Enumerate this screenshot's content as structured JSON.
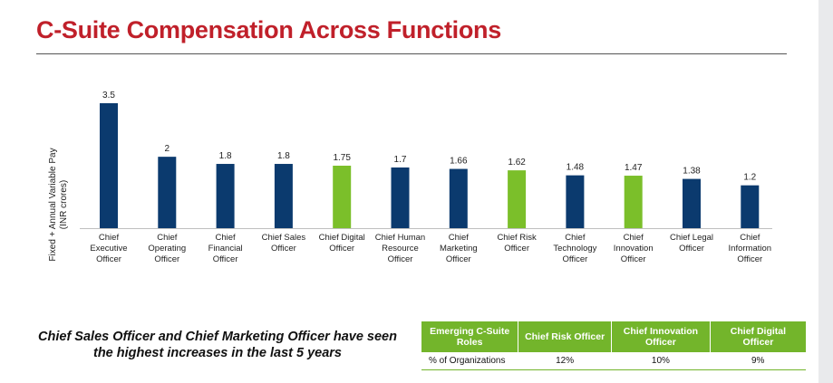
{
  "page": {
    "title": "C-Suite Compensation Across Functions",
    "caption": "Chief Sales Officer and Chief Marketing Officer have seen the highest increases in the last 5 years"
  },
  "colors": {
    "title": "#c0202a",
    "bar_primary": "#0b3a6e",
    "bar_emerging": "#7bbf2a",
    "table_header": "#73b52b"
  },
  "chart_data": {
    "type": "bar",
    "ylabel": "Fixed + Annual Variable Pay\n(INR crores)",
    "categories": [
      "Chief\nExecutive\nOfficer",
      "Chief\nOperating\nOfficer",
      "Chief\nFinancial\nOfficer",
      "Chief Sales\nOfficer",
      "Chief Digital\nOfficer",
      "Chief Human\nResource\nOfficer",
      "Chief\nMarketing\nOfficer",
      "Chief Risk\nOfficer",
      "Chief\nTechnology\nOfficer",
      "Chief\nInnovation\nOfficer",
      "Chief Legal\nOfficer",
      "Chief\nInformation\nOfficer"
    ],
    "values": [
      3.5,
      2,
      1.8,
      1.8,
      1.75,
      1.7,
      1.66,
      1.62,
      1.48,
      1.47,
      1.38,
      1.2
    ],
    "value_labels": [
      "3.5",
      "2",
      "1.8",
      "1.8",
      "1.75",
      "1.7",
      "1.66",
      "1.62",
      "1.48",
      "1.47",
      "1.38",
      "1.2"
    ],
    "emerging": [
      false,
      false,
      false,
      false,
      true,
      false,
      false,
      true,
      false,
      true,
      false,
      false
    ],
    "ylim": [
      0,
      3.5
    ],
    "grid": false,
    "legend": "none"
  },
  "table": {
    "headers": [
      "Emerging C-Suite\nRoles",
      "Chief Risk Officer",
      "Chief Innovation\nOfficer",
      "Chief Digital\nOfficer"
    ],
    "rows": [
      [
        "% of Organizations",
        "12%",
        "10%",
        "9%"
      ]
    ]
  }
}
